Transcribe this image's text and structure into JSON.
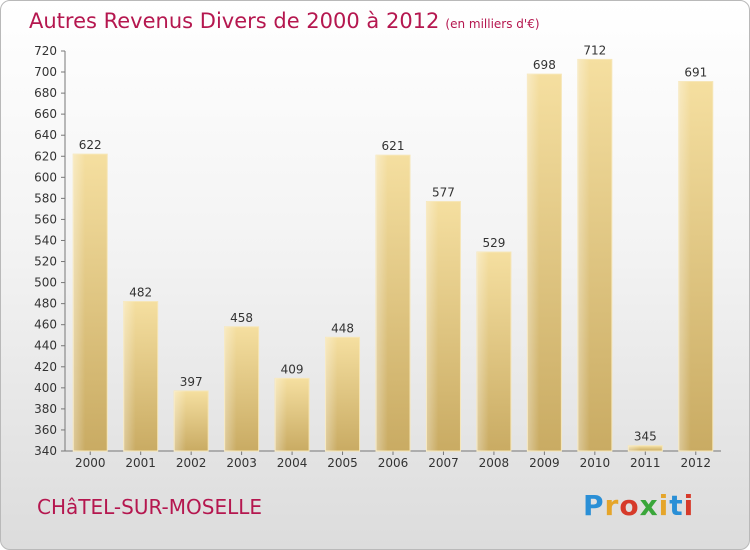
{
  "header": {
    "title": "Autres Revenus Divers de 2000 à 2012",
    "unit": "(en milliers d'€)"
  },
  "footer": {
    "place": "CHâTEL-SUR-MOSELLE",
    "logo_letters": [
      "P",
      "r",
      "o",
      "x",
      "i",
      "t",
      "i"
    ],
    "logo_colors": [
      "#2a8fd6",
      "#e5a52a",
      "#d63a2a",
      "#3aa63a",
      "#e5a52a",
      "#2a8fd6",
      "#d63a2a"
    ]
  },
  "chart_data": {
    "type": "bar",
    "title": "Autres Revenus Divers de 2000 à 2012",
    "subtitle": "(en milliers d'€)",
    "categories": [
      "2000",
      "2001",
      "2002",
      "2003",
      "2004",
      "2005",
      "2006",
      "2007",
      "2008",
      "2009",
      "2010",
      "2011",
      "2012"
    ],
    "values": [
      622,
      482,
      397,
      458,
      409,
      448,
      621,
      577,
      529,
      698,
      712,
      345,
      691
    ],
    "ylim": [
      340,
      720
    ],
    "yticks": [
      340,
      360,
      380,
      400,
      420,
      440,
      460,
      480,
      500,
      520,
      540,
      560,
      580,
      600,
      620,
      640,
      660,
      680,
      700,
      720
    ],
    "grid": false,
    "bar_color": "#e3c67e",
    "text_color": "#b5174f"
  }
}
